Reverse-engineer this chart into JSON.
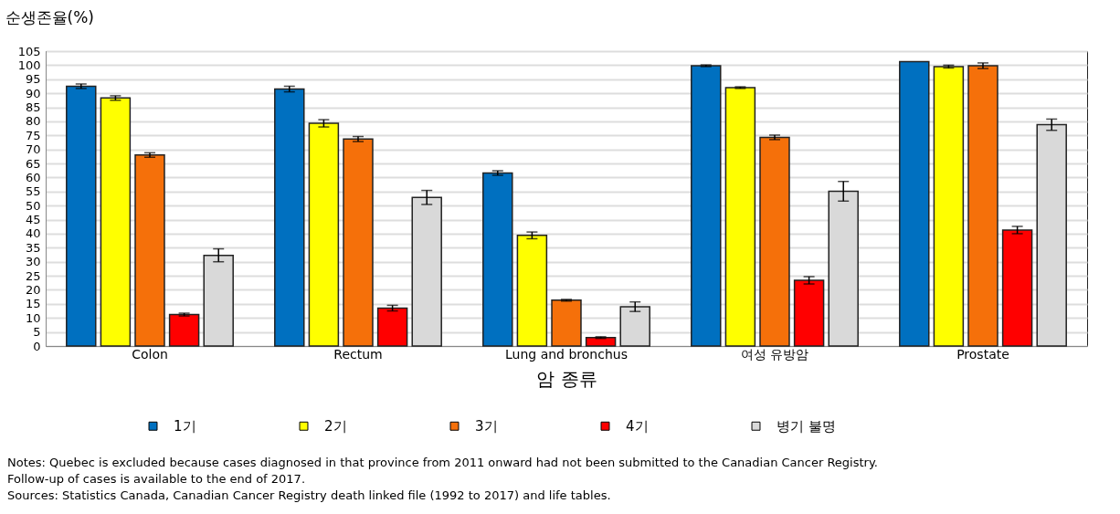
{
  "chart_data": {
    "type": "bar",
    "ylabel": "순생존율(%)",
    "xlabel": "암 종류",
    "categories": [
      "Colon",
      "Rectum",
      "Lung and bronchus",
      "여성 유방암",
      "Prostate"
    ],
    "series": [
      {
        "name": "1기",
        "color": "#0070c0",
        "values": [
          92.5,
          91.5,
          61.6,
          99.8,
          101.3
        ],
        "errors": [
          0.8,
          1.0,
          0.8,
          0.3,
          null
        ]
      },
      {
        "name": "2기",
        "color": "#ffff00",
        "values": [
          88.3,
          79.3,
          39.4,
          92.0,
          99.5
        ],
        "errors": [
          0.8,
          1.3,
          1.2,
          0.3,
          0.5
        ]
      },
      {
        "name": "3기",
        "color": "#f5700a",
        "values": [
          68.0,
          73.7,
          16.3,
          74.3,
          99.8
        ],
        "errors": [
          0.8,
          0.9,
          0.3,
          0.8,
          1.0
        ]
      },
      {
        "name": "4기",
        "color": "#ff0000",
        "values": [
          11.2,
          13.5,
          3.0,
          23.4,
          41.3
        ],
        "errors": [
          0.5,
          1.0,
          0.3,
          1.3,
          1.3
        ]
      },
      {
        "name": "병기 불명",
        "color": "#d9d9d9",
        "values": [
          32.3,
          52.9,
          14.0,
          55.1,
          78.8
        ],
        "errors": [
          2.3,
          2.5,
          1.7,
          3.5,
          2.0
        ]
      }
    ],
    "ylim": [
      0,
      105
    ],
    "yticks": [
      0,
      5,
      10,
      15,
      20,
      25,
      30,
      35,
      40,
      45,
      50,
      55,
      60,
      65,
      70,
      75,
      80,
      85,
      90,
      95,
      100,
      105
    ],
    "grid": "y",
    "legend": "bottom",
    "annotations": [
      "Notes: Quebec is excluded because cases diagnosed in that province from 2011 onward had not been submitted to the Canadian Cancer Registry.",
      "Follow-up of cases is available to the end of 2017.",
      "Sources: Statistics Canada, Canadian Cancer Registry death linked file (1992 to 2017) and life tables."
    ]
  }
}
